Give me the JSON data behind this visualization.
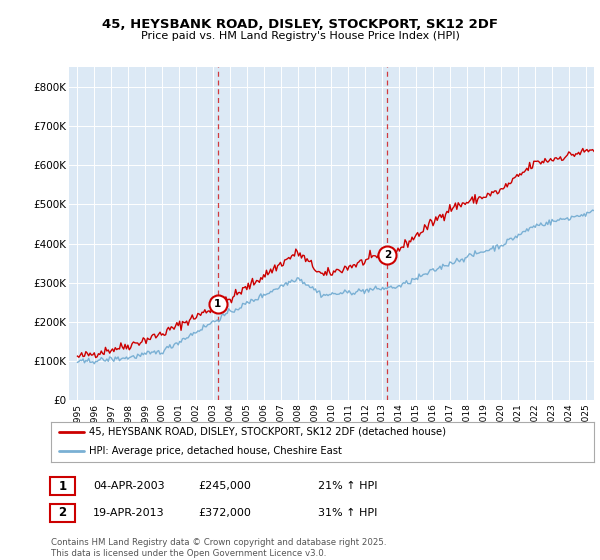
{
  "title": "45, HEYSBANK ROAD, DISLEY, STOCKPORT, SK12 2DF",
  "subtitle": "Price paid vs. HM Land Registry's House Price Index (HPI)",
  "legend_line1": "45, HEYSBANK ROAD, DISLEY, STOCKPORT, SK12 2DF (detached house)",
  "legend_line2": "HPI: Average price, detached house, Cheshire East",
  "purchase1_date": 2003.27,
  "purchase1_price": 245000,
  "purchase1_label": "1",
  "purchase2_date": 2013.3,
  "purchase2_price": 372000,
  "purchase2_label": "2",
  "red_color": "#cc0000",
  "blue_color": "#7ab0d4",
  "bg_color": "#dce9f5",
  "footer": "Contains HM Land Registry data © Crown copyright and database right 2025.\nThis data is licensed under the Open Government Licence v3.0.",
  "ylim": [
    0,
    850000
  ],
  "yticks": [
    0,
    100000,
    200000,
    300000,
    400000,
    500000,
    600000,
    700000,
    800000
  ],
  "xlim": [
    1994.5,
    2025.5
  ],
  "info1_date": "04-APR-2003",
  "info1_price": "£245,000",
  "info1_hpi": "21% ↑ HPI",
  "info2_date": "19-APR-2013",
  "info2_price": "£372,000",
  "info2_hpi": "31% ↑ HPI"
}
